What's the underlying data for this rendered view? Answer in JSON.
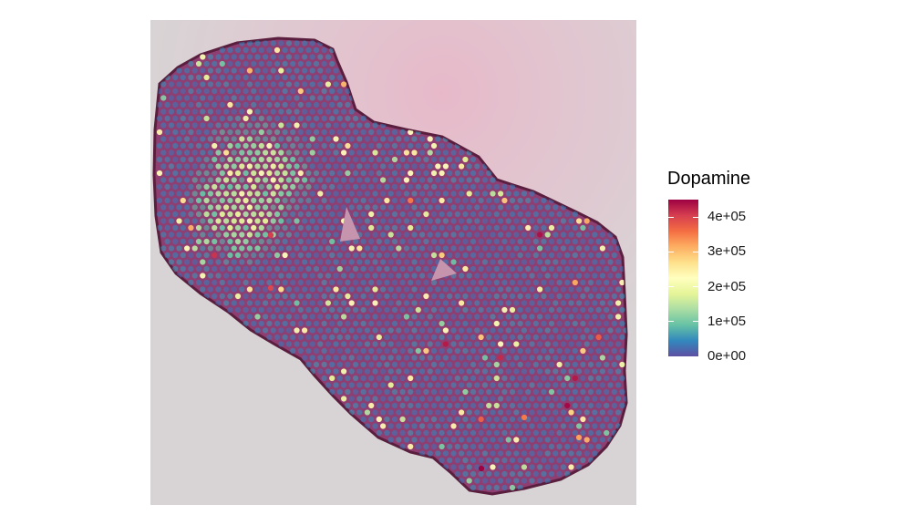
{
  "legend": {
    "title": "Dopamine",
    "ticks": [
      {
        "label": "4e+05",
        "value": 400000
      },
      {
        "label": "3e+05",
        "value": 300000
      },
      {
        "label": "2e+05",
        "value": 200000
      },
      {
        "label": "1e+05",
        "value": 100000
      },
      {
        "label": "0e+00",
        "value": 0
      }
    ],
    "range": [
      0,
      450000
    ],
    "palette": [
      "#5e4fa2",
      "#3288bd",
      "#66c2a5",
      "#abdda4",
      "#e6f598",
      "#ffffbf",
      "#fee08b",
      "#fdae61",
      "#f46d43",
      "#d53e4f",
      "#9e0142"
    ]
  },
  "image": {
    "background_color": "#d8d4d5",
    "tissue_color": "#8f3e72",
    "tissue_edge_color": "#5a1f3f",
    "stain_tint_color": "#e7b3c6"
  }
}
